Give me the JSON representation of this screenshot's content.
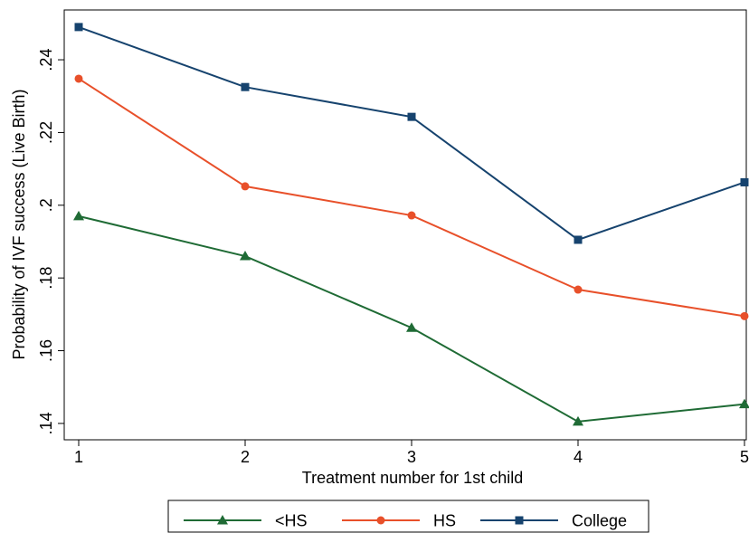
{
  "chart_data": {
    "type": "line",
    "xlabel": "Treatment number for 1st child",
    "ylabel": "Probability of IVF success (Live Birth)",
    "x": [
      1,
      2,
      3,
      4,
      5
    ],
    "xticks": [
      "1",
      "2",
      "3",
      "4",
      "5"
    ],
    "yticks": [
      ".14",
      ".16",
      ".18",
      ".2",
      ".22",
      ".24"
    ],
    "ytick_values": [
      0.14,
      0.16,
      0.18,
      0.2,
      0.22,
      0.24
    ],
    "xlim": [
      1,
      5
    ],
    "ylim": [
      0.1355,
      0.2537
    ],
    "grid": false,
    "legend_position": "bottom",
    "series": [
      {
        "name": "<HS",
        "values": [
          0.197,
          0.186,
          0.1663,
          0.1405,
          0.1453
        ],
        "color": "#1f6b35",
        "marker": "triangle"
      },
      {
        "name": "HS",
        "values": [
          0.2348,
          0.2052,
          0.1972,
          0.1768,
          0.1695
        ],
        "color": "#e8502a",
        "marker": "circle"
      },
      {
        "name": "College",
        "values": [
          0.249,
          0.2325,
          0.2243,
          0.1905,
          0.2063
        ],
        "color": "#16436e",
        "marker": "square"
      }
    ]
  }
}
